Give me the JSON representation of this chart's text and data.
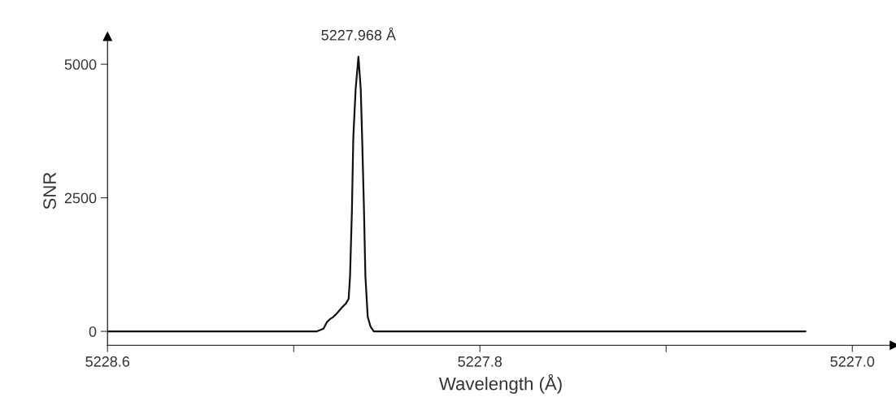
{
  "chart_data": {
    "type": "line",
    "xlabel": "Wavelength (Å)",
    "ylabel": "SNR",
    "xlim": [
      5228.6,
      5226.91
    ],
    "xticks": [
      5228.6,
      {
        "value": 5228.2,
        "label": null
      },
      5227.8,
      {
        "value": 5227.4,
        "label": null
      },
      {
        "value": 5227.0,
        "label": "5227.0"
      }
    ],
    "ylim": [
      -260,
      5520
    ],
    "yticks": [
      0,
      2500,
      5000
    ],
    "grid": false,
    "annotations": [
      {
        "text": "5227.968 Å",
        "x": 5228.061,
        "y": 5140
      }
    ],
    "series": [
      {
        "color": "#111111",
        "x": [
          5228.598,
          5228.307,
          5228.15,
          5228.136,
          5228.129,
          5228.122,
          5228.115,
          5228.108,
          5228.101,
          5228.095,
          5228.088,
          5228.082,
          5228.079,
          5228.075,
          5228.072,
          5228.067,
          5228.061,
          5228.056,
          5228.053,
          5228.049,
          5228.046,
          5228.041,
          5228.035,
          5228.028,
          5228.011,
          5227.959,
          5227.871,
          5227.854,
          5227.823,
          5227.784,
          5227.61,
          5227.488,
          5227.436,
          5227.261,
          5227.101
        ],
        "values": [
          0,
          0,
          0,
          50,
          170,
          230,
          270,
          330,
          400,
          460,
          520,
          610,
          1030,
          2250,
          3620,
          4530,
          5140,
          4530,
          3620,
          2250,
          1030,
          270,
          90,
          0,
          0,
          0,
          0,
          0,
          0,
          0,
          0,
          0,
          0,
          0,
          0
        ]
      }
    ]
  }
}
